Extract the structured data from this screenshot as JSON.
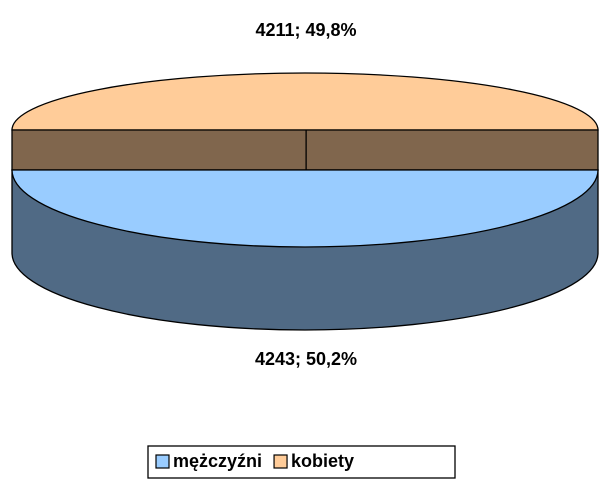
{
  "chart_data": {
    "type": "pie3d",
    "categories": [
      "mężczyźni",
      "kobiety"
    ],
    "values": [
      4243,
      4211
    ],
    "value_labels": [
      "4243; 50,2%",
      "4211; 49,8%"
    ],
    "colors": [
      "#99ccff",
      "#ffcc99"
    ],
    "legend": "bottom"
  }
}
